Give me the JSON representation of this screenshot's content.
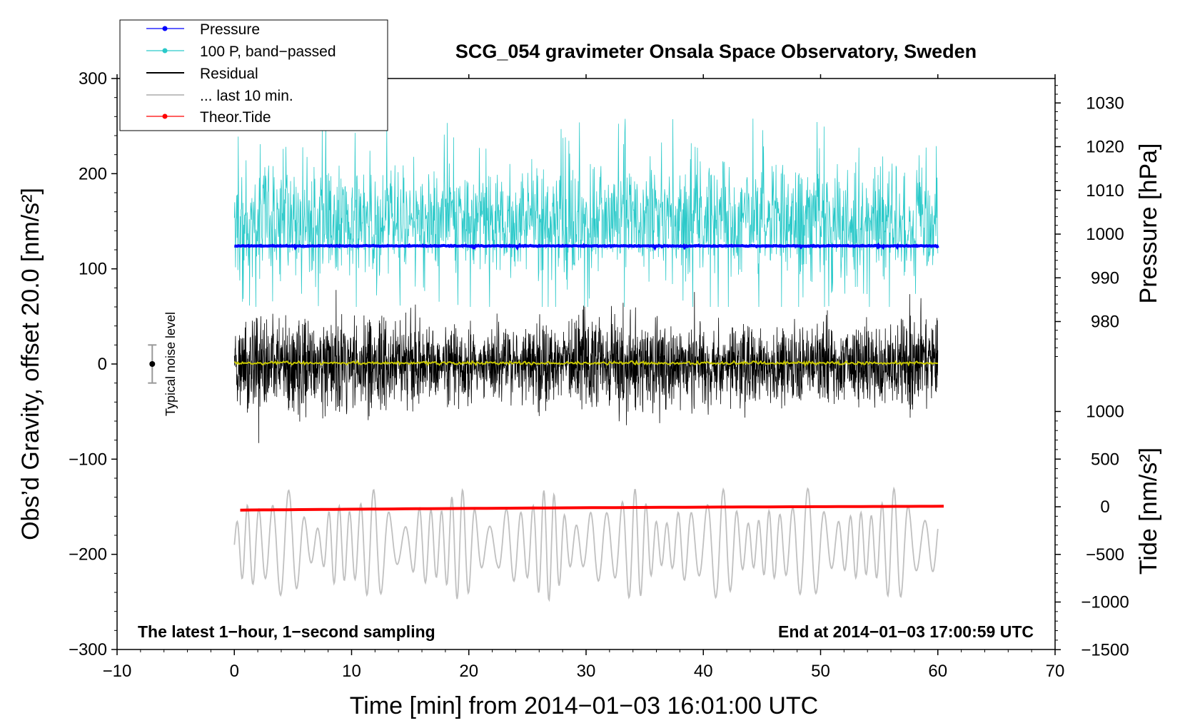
{
  "chart_data": {
    "type": "line",
    "title": "SCG_054 gravimeter Onsala Space Observatory, Sweden",
    "xlabel": "Time [min] from 2014−01−03 16:01:00 UTC",
    "ylabel": "Obs’d Gravity, offset 20.0 [nm/s²]",
    "ylabel_right_top": "Pressure [hPa]",
    "ylabel_right_bottom": "Tide [nm/s²]",
    "xlim": [
      -10,
      70
    ],
    "ylim": [
      -300,
      300
    ],
    "pressure_axis_range": [
      970,
      1035
    ],
    "tide_axis_range": [
      -1500,
      1100
    ],
    "x_ticks": [
      -10,
      0,
      10,
      20,
      30,
      40,
      50,
      60,
      70
    ],
    "x_tick_labels": [
      "−10",
      "0",
      "10",
      "20",
      "30",
      "40",
      "50",
      "60",
      "70"
    ],
    "y_ticks": [
      -300,
      -200,
      -100,
      0,
      100,
      200,
      300
    ],
    "y_tick_labels": [
      "−300",
      "−200",
      "−100",
      "0",
      "100",
      "200",
      "300"
    ],
    "pressure_ticks": [
      980,
      990,
      1000,
      1010,
      1020,
      1030
    ],
    "pressure_tick_labels": [
      "980",
      "990",
      "1000",
      "1010",
      "1020",
      "1030"
    ],
    "tide_ticks": [
      -1500,
      -1000,
      -500,
      0,
      500,
      1000
    ],
    "tide_tick_labels": [
      "−1500",
      "−1000",
      "−500",
      "0",
      "500",
      "1000"
    ],
    "legend": [
      {
        "label": "Pressure",
        "color": "#0000ff",
        "marker": true
      },
      {
        "label": "100 P, band−passed",
        "color": "#2ac9c9",
        "marker": true
      },
      {
        "label": "Residual",
        "color": "#000000",
        "marker": false
      },
      {
        "label": "... last 10 min.",
        "color": "#c0c0c0",
        "marker": false
      },
      {
        "label": "Theor.Tide",
        "color": "#ff0000",
        "marker": true
      }
    ],
    "annotations": {
      "bottom_left": "The latest 1−hour, 1−second sampling",
      "bottom_right": "End at 2014−01−03 17:00:59 UTC",
      "noise_label": "Typical noise level"
    },
    "noise_bar": {
      "x": -7,
      "center": 0,
      "half_range": 20
    },
    "series": [
      {
        "name": "Pressure",
        "color": "#0000ff",
        "x_range": [
          0,
          60
        ],
        "level_hPa": 997.3,
        "variation_hPa": 0.4
      },
      {
        "name": "100 P, band−passed",
        "color": "#2ac9c9",
        "x_range": [
          0,
          60
        ],
        "center": 150,
        "typical_amplitude": 40,
        "max_value": 265,
        "min_value": 60
      },
      {
        "name": "Residual",
        "color": "#000000",
        "x_range": [
          0,
          60
        ],
        "center": 0,
        "typical_amplitude": 40,
        "max_value": 95,
        "min_value": -90
      },
      {
        "name": "Residual (smoothed)",
        "color": "#c8c800",
        "x_range": [
          0,
          60
        ],
        "center": 1
      },
      {
        "name": "... last 10 min.",
        "color": "#c0c0c0",
        "x_range": [
          0,
          60
        ],
        "center": -190,
        "typical_amplitude": 35,
        "max_value": -112,
        "min_value": -255
      },
      {
        "name": "Theor.Tide",
        "color": "#ff0000",
        "x_range": [
          0.5,
          60.5
        ],
        "start_nm_s2": -35,
        "end_nm_s2": 5
      }
    ]
  }
}
